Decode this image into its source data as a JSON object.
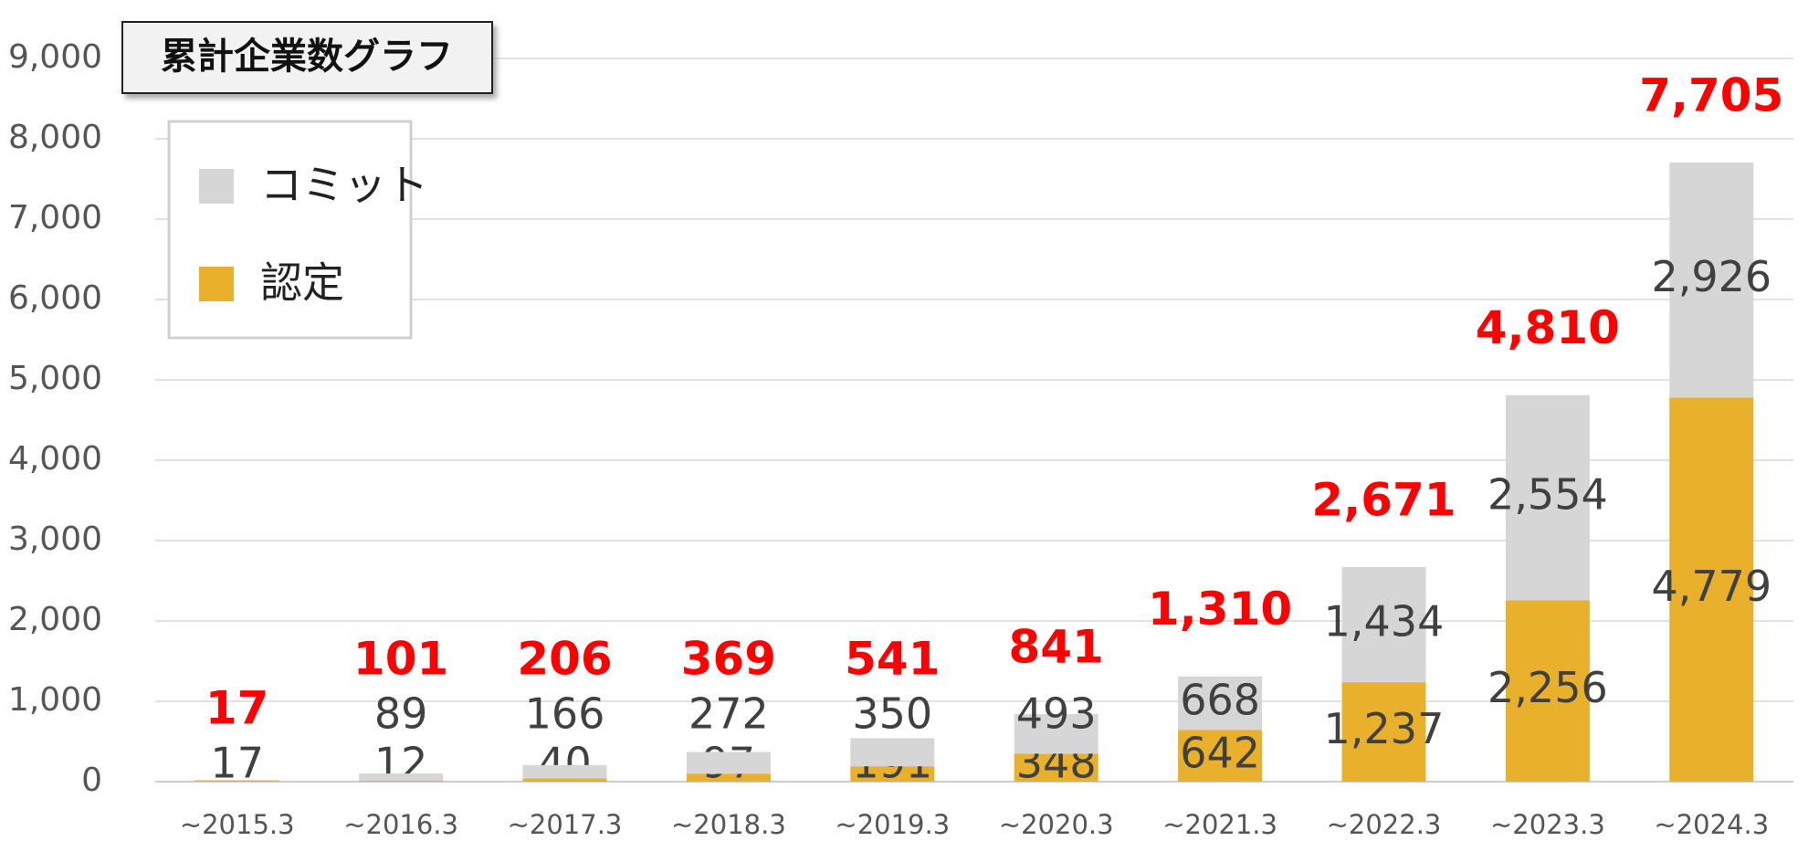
{
  "chart_data": {
    "type": "stacked-bar",
    "title": "累計企業数グラフ",
    "categories": [
      "~2015.3",
      "~2016.3",
      "~2017.3",
      "~2018.3",
      "~2019.3",
      "~2020.3",
      "~2021.3",
      "~2022.3",
      "~2023.3",
      "~2024.3"
    ],
    "series": [
      {
        "name": "認定",
        "color": "#e9b12b",
        "values": [
          17,
          12,
          40,
          97,
          191,
          348,
          642,
          1237,
          2256,
          4779
        ],
        "value_labels": [
          "17",
          "12",
          "40",
          "97",
          "191",
          "348",
          "642",
          "1,237",
          "2,256",
          "4,779"
        ]
      },
      {
        "name": "コミット",
        "color": "#d6d6d6",
        "values": [
          null,
          89,
          166,
          272,
          350,
          493,
          668,
          1434,
          2554,
          2926
        ],
        "value_labels": [
          null,
          "89",
          "166",
          "272",
          "350",
          "493",
          "668",
          "1,434",
          "2,554",
          "2,926"
        ]
      }
    ],
    "totals": {
      "color": "#ff0000",
      "values": [
        17,
        101,
        206,
        369,
        541,
        841,
        1310,
        2671,
        4810,
        7705
      ],
      "value_labels": [
        "17",
        "101",
        "206",
        "369",
        "541",
        "841",
        "1,310",
        "2,671",
        "4,810",
        "7,705"
      ]
    },
    "ylim": [
      0,
      9000
    ],
    "yticks": [
      0,
      {
        "value": 1000,
        "label": "1,000"
      },
      {
        "value": 2000,
        "label": "2,000"
      },
      {
        "value": 3000,
        "label": "3,000"
      },
      {
        "value": 4000,
        "label": "4,000"
      },
      {
        "value": 5000,
        "label": "5,000"
      },
      {
        "value": 6000,
        "label": "6,000"
      },
      {
        "value": 7000,
        "label": "7,000"
      },
      {
        "value": 8000,
        "label": "8,000"
      },
      {
        "value": 9000,
        "label": "9,000"
      }
    ],
    "grid": true,
    "legend": "upper-left"
  }
}
